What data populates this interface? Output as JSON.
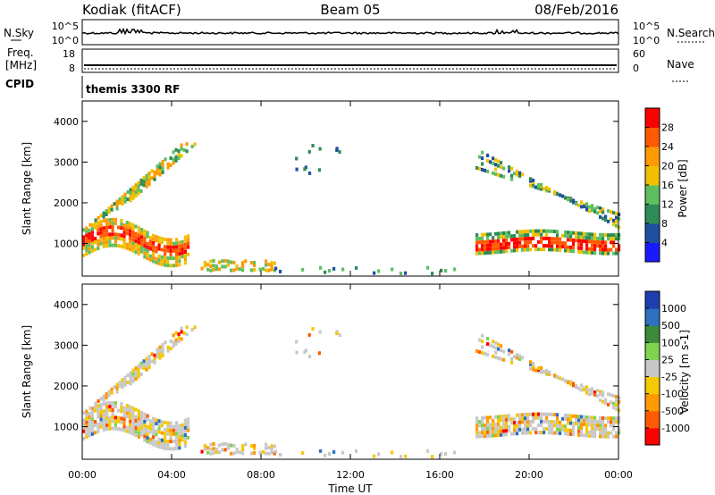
{
  "header": {
    "station": "Kodiak (fitACF)",
    "beam": "Beam 05",
    "date": "08/Feb/2016"
  },
  "top_panels": {
    "nsky_label": "N.Sky",
    "nsearch_label": "N.Search",
    "noise_ticks": [
      "10^5",
      "10^0"
    ],
    "freq_label_1": "Freq.",
    "freq_label_2": "[MHz]",
    "freq_ticks": [
      "18",
      "8"
    ],
    "nave_label": "Nave",
    "nave_ticks": [
      "60",
      "0"
    ],
    "cpid_label": "CPID",
    "cpid_value": "themis 3300 RF"
  },
  "chart_data": [
    {
      "type": "heatmap",
      "panel": "power",
      "ylabel": "Slant Range [km]",
      "yticks": [
        1000,
        2000,
        3000,
        4000
      ],
      "ylim": [
        200,
        4500
      ],
      "colorbar": {
        "label": "Power [dB]",
        "ticks": [
          "4",
          "8",
          "12",
          "16",
          "20",
          "24",
          "28"
        ],
        "colors": [
          "#1a1aff",
          "#1f4fa0",
          "#2e8b57",
          "#5fbf5f",
          "#f0c000",
          "#ff9a00",
          "#ff5a00",
          "#ff0000"
        ]
      },
      "features": [
        {
          "region": "00:00-05:30",
          "range_km": [
            500,
            3500
          ],
          "level": "high near 1000 km"
        },
        {
          "region": "05:00-08:00",
          "range_km": [
            250,
            900
          ],
          "level": "moderate"
        },
        {
          "region": "17:30-24:00",
          "range_km": [
            800,
            3100
          ],
          "level": "high near 1000 km"
        }
      ]
    },
    {
      "type": "heatmap",
      "panel": "velocity",
      "ylabel": "Slant Range [km]",
      "yticks": [
        1000,
        2000,
        3000,
        4000
      ],
      "ylim": [
        200,
        4500
      ],
      "colorbar": {
        "label": "Velocity [m s-1]",
        "ticks": [
          "1000",
          "500",
          "100",
          "25",
          "-25",
          "-100",
          "-500",
          "-1000"
        ],
        "colors": [
          "#1f3faf",
          "#2f6fbf",
          "#3a8a3a",
          "#7fd34f",
          "#c8c8c8",
          "#f5c800",
          "#ff9a00",
          "#ff5a00",
          "#ff0000"
        ]
      }
    }
  ],
  "xaxis": {
    "label": "Time UT",
    "ticks": [
      "00:00",
      "04:00",
      "08:00",
      "12:00",
      "16:00",
      "20:00",
      "00:00"
    ]
  }
}
